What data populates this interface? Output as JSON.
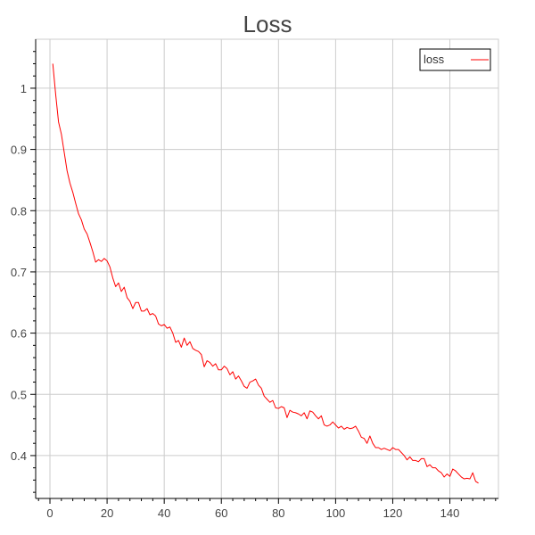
{
  "chart_data": {
    "type": "line",
    "title": "Loss",
    "xlabel": "",
    "ylabel": "",
    "xlim": [
      -5,
      157
    ],
    "ylim": [
      0.33,
      1.08
    ],
    "xticks": [
      0,
      20,
      40,
      60,
      80,
      100,
      120,
      140
    ],
    "yticks": [
      0.4,
      0.5,
      0.6,
      0.7,
      0.8,
      0.9,
      1
    ],
    "grid": true,
    "legend": "top-right",
    "series": [
      {
        "name": "loss",
        "color": "#ff0000",
        "x": [
          1,
          2,
          3,
          4,
          5,
          6,
          7,
          8,
          9,
          10,
          11,
          12,
          13,
          14,
          15,
          16,
          17,
          18,
          19,
          20,
          21,
          22,
          23,
          24,
          25,
          26,
          27,
          28,
          29,
          30,
          31,
          32,
          33,
          34,
          35,
          36,
          37,
          38,
          39,
          40,
          41,
          42,
          43,
          44,
          45,
          46,
          47,
          48,
          49,
          50,
          51,
          52,
          53,
          54,
          55,
          56,
          57,
          58,
          59,
          60,
          61,
          62,
          63,
          64,
          65,
          66,
          67,
          68,
          69,
          70,
          71,
          72,
          73,
          74,
          75,
          76,
          77,
          78,
          79,
          80,
          81,
          82,
          83,
          84,
          85,
          86,
          87,
          88,
          89,
          90,
          91,
          92,
          93,
          94,
          95,
          96,
          97,
          98,
          99,
          100,
          101,
          102,
          103,
          104,
          105,
          106,
          107,
          108,
          109,
          110,
          111,
          112,
          113,
          114,
          115,
          116,
          117,
          118,
          119,
          120,
          121,
          122,
          123,
          124,
          125,
          126,
          127,
          128,
          129,
          130,
          131,
          132,
          133,
          134,
          135,
          136,
          137,
          138,
          139,
          140,
          141,
          142,
          143,
          144,
          145,
          146,
          147,
          148,
          149,
          150
        ],
        "y": [
          1.04,
          0.99,
          0.945,
          0.925,
          0.895,
          0.865,
          0.845,
          0.83,
          0.812,
          0.795,
          0.785,
          0.77,
          0.762,
          0.748,
          0.733,
          0.716,
          0.72,
          0.717,
          0.722,
          0.718,
          0.708,
          0.69,
          0.676,
          0.682,
          0.668,
          0.675,
          0.658,
          0.652,
          0.64,
          0.65,
          0.65,
          0.636,
          0.636,
          0.64,
          0.63,
          0.632,
          0.628,
          0.615,
          0.612,
          0.614,
          0.608,
          0.61,
          0.6,
          0.585,
          0.588,
          0.577,
          0.592,
          0.58,
          0.586,
          0.575,
          0.572,
          0.57,
          0.565,
          0.545,
          0.555,
          0.552,
          0.546,
          0.55,
          0.54,
          0.54,
          0.546,
          0.542,
          0.532,
          0.537,
          0.525,
          0.53,
          0.522,
          0.513,
          0.51,
          0.52,
          0.522,
          0.525,
          0.515,
          0.51,
          0.497,
          0.492,
          0.487,
          0.49,
          0.478,
          0.477,
          0.48,
          0.478,
          0.462,
          0.474,
          0.471,
          0.47,
          0.468,
          0.465,
          0.47,
          0.46,
          0.473,
          0.471,
          0.465,
          0.46,
          0.465,
          0.45,
          0.448,
          0.45,
          0.455,
          0.45,
          0.445,
          0.448,
          0.443,
          0.446,
          0.444,
          0.445,
          0.448,
          0.44,
          0.43,
          0.428,
          0.42,
          0.432,
          0.42,
          0.413,
          0.413,
          0.41,
          0.412,
          0.41,
          0.408,
          0.413,
          0.41,
          0.41,
          0.405,
          0.4,
          0.393,
          0.398,
          0.392,
          0.392,
          0.39,
          0.395,
          0.395,
          0.382,
          0.385,
          0.38,
          0.38,
          0.375,
          0.372,
          0.365,
          0.37,
          0.366,
          0.378,
          0.375,
          0.37,
          0.365,
          0.362,
          0.363,
          0.362,
          0.372,
          0.358,
          0.355
        ]
      }
    ]
  }
}
